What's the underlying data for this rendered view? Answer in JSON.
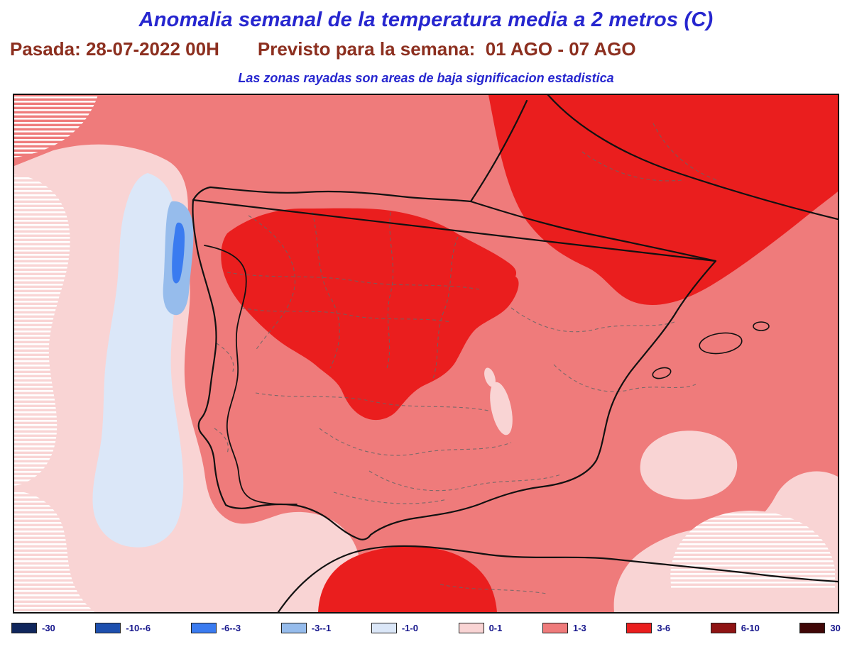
{
  "header": {
    "title": "Anomalia semanal de la temperatura media a 2 metros (C)",
    "run": "Pasada: 28-07-2022 00H",
    "forecast": "Previsto para la semana:  01 AGO - 07 AGO",
    "note": "Las zonas rayadas son areas de baja significacion estadistica"
  },
  "colors": {
    "title": "#2626cf",
    "subtitle": "#8c2f1f",
    "legend_text": "#16168c",
    "coastline": "#111111",
    "province_border": "#666666"
  },
  "legend": {
    "items": [
      {
        "label": "-30",
        "color": "#10265c"
      },
      {
        "label": "-10--6",
        "color": "#1d4fae"
      },
      {
        "label": "-6--3",
        "color": "#3a7bf0"
      },
      {
        "label": "-3--1",
        "color": "#96bcec"
      },
      {
        "label": "-1-0",
        "color": "#dbe7f8"
      },
      {
        "label": "0-1",
        "color": "#f9d4d4"
      },
      {
        "label": "1-3",
        "color": "#ef7b7b"
      },
      {
        "label": "3-6",
        "color": "#ea1e1e"
      },
      {
        "label": "6-10",
        "color": "#8f1414"
      },
      {
        "label": "30",
        "color": "#400707"
      }
    ]
  },
  "map_regions": [
    {
      "band": "3-6",
      "areas": [
        "northwest and central interior of the peninsula",
        "northeast Spain and southern France",
        "Alboran Sea / northern Morocco"
      ]
    },
    {
      "band": "1-3",
      "areas": [
        "most of the peninsula and western Mediterranean"
      ]
    },
    {
      "band": "0-1",
      "areas": [
        "Atlantic west of Portugal (partly hatched)",
        "Gulf of Cadiz",
        "southeastern corner (partly hatched)"
      ]
    },
    {
      "band": "-1-0",
      "areas": [
        "Atlantic band off the Portuguese coast"
      ]
    },
    {
      "band": "-3--1",
      "areas": [
        "small area off northern Portugal coast"
      ]
    },
    {
      "band": "-6--3",
      "areas": [
        "tiny streak off northern Portugal coast"
      ]
    }
  ]
}
